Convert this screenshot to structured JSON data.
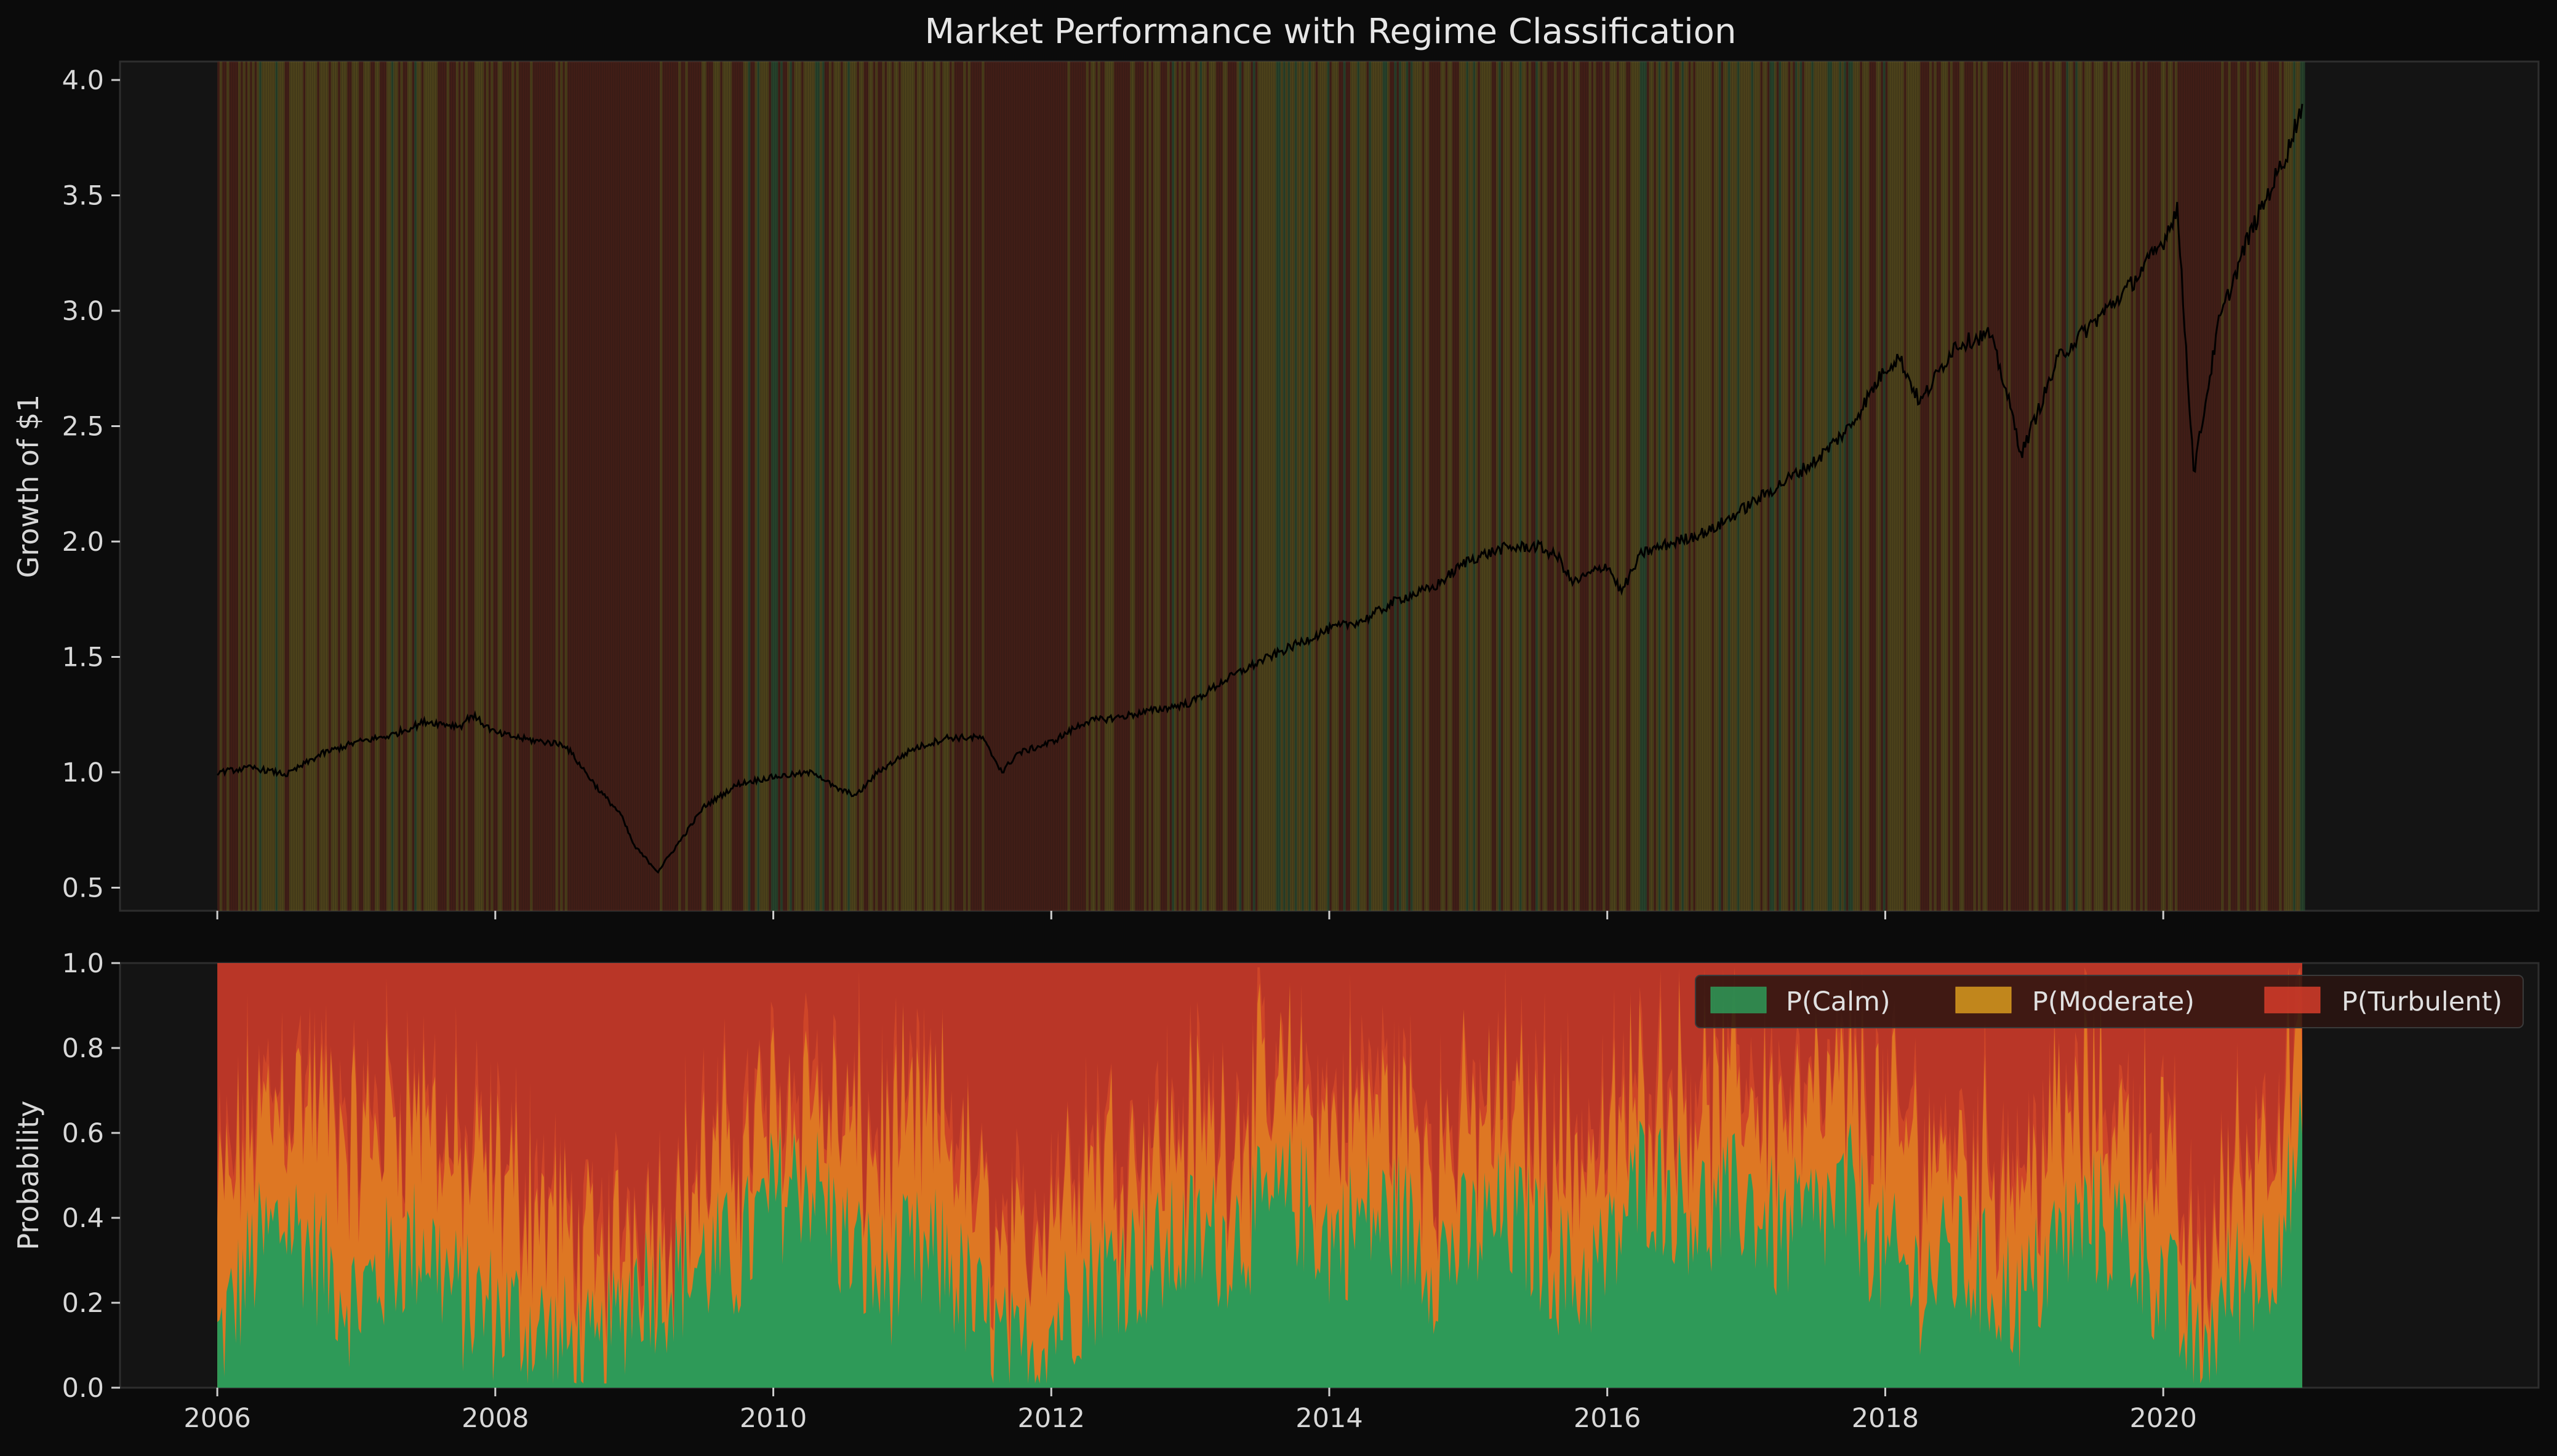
{
  "chart_data": [
    {
      "id": "growth-panel",
      "type": "line",
      "title": "Market Performance with Regime Classification",
      "ylabel": "Growth of $1",
      "xlabel": "",
      "xlim": [
        2005.3,
        2022.7
      ],
      "ylim": [
        0.4,
        4.08
      ],
      "yticks": [
        0.5,
        1.0,
        1.5,
        2.0,
        2.5,
        3.0,
        3.5,
        4.0
      ],
      "ytick_labels": [
        "0.5",
        "1.0",
        "1.5",
        "2.0",
        "2.5",
        "3.0",
        "3.5",
        "4.0"
      ],
      "grid": false,
      "line_color": "#000000",
      "background_regime_colors": {
        "calm": "#2f5a36",
        "moderate": "#6a5a1e",
        "turbulent": "#5a2218"
      },
      "series": [
        {
          "x": [
            2006.0,
            2006.25,
            2006.5,
            2006.75,
            2007.0,
            2007.25,
            2007.5,
            2007.75,
            2007.83,
            2008.0,
            2008.25,
            2008.5,
            2008.75,
            2008.9,
            2009.0,
            2009.17,
            2009.35,
            2009.5,
            2009.75,
            2010.0,
            2010.3,
            2010.45,
            2010.6,
            2010.75,
            2011.0,
            2011.25,
            2011.5,
            2011.65,
            2011.75,
            2012.0,
            2012.25,
            2012.5,
            2012.75,
            2013.0,
            2013.25,
            2013.5,
            2013.75,
            2014.0,
            2014.25,
            2014.5,
            2014.75,
            2015.0,
            2015.25,
            2015.5,
            2015.65,
            2015.75,
            2016.0,
            2016.1,
            2016.25,
            2016.5,
            2016.75,
            2017.0,
            2017.25,
            2017.5,
            2017.75,
            2018.0,
            2018.1,
            2018.25,
            2018.5,
            2018.75,
            2018.85,
            2018.98,
            2019.25,
            2019.5,
            2019.75,
            2020.0,
            2020.1,
            2020.22,
            2020.4,
            2020.6,
            2020.75,
            2020.9,
            2021.0
          ],
          "y": [
            1.0,
            1.02,
            0.99,
            1.08,
            1.13,
            1.16,
            1.22,
            1.2,
            1.25,
            1.17,
            1.14,
            1.12,
            0.92,
            0.82,
            0.68,
            0.57,
            0.72,
            0.85,
            0.95,
            0.98,
            1.0,
            0.93,
            0.9,
            1.0,
            1.1,
            1.15,
            1.15,
            1.0,
            1.08,
            1.13,
            1.22,
            1.24,
            1.27,
            1.3,
            1.4,
            1.48,
            1.55,
            1.62,
            1.66,
            1.75,
            1.8,
            1.92,
            1.97,
            1.98,
            1.93,
            1.82,
            1.9,
            1.78,
            1.95,
            2.0,
            2.05,
            2.15,
            2.25,
            2.35,
            2.5,
            2.75,
            2.8,
            2.6,
            2.85,
            2.9,
            2.7,
            2.38,
            2.8,
            2.95,
            3.1,
            3.3,
            3.45,
            2.3,
            2.95,
            3.3,
            3.5,
            3.7,
            3.9
          ]
        }
      ]
    },
    {
      "id": "probability-panel",
      "type": "area",
      "stacked": true,
      "ylabel": "Probability",
      "xlabel": "",
      "xlim": [
        2005.3,
        2022.7
      ],
      "ylim": [
        0.0,
        1.0
      ],
      "yticks": [
        0.0,
        0.2,
        0.4,
        0.6,
        0.8,
        1.0
      ],
      "ytick_labels": [
        "0.0",
        "0.2",
        "0.4",
        "0.6",
        "0.8",
        "1.0"
      ],
      "xticks": [
        2006,
        2008,
        2010,
        2012,
        2014,
        2016,
        2018,
        2020
      ],
      "xtick_labels": [
        "2006",
        "2008",
        "2010",
        "2012",
        "2014",
        "2016",
        "2018",
        "2020"
      ],
      "grid": false,
      "legend_position": "top-right",
      "x": [
        2006.0,
        2006.25,
        2006.5,
        2006.75,
        2007.0,
        2007.25,
        2007.5,
        2007.75,
        2008.0,
        2008.25,
        2008.5,
        2008.75,
        2009.0,
        2009.25,
        2009.5,
        2009.75,
        2010.0,
        2010.25,
        2010.5,
        2010.75,
        2011.0,
        2011.25,
        2011.5,
        2011.75,
        2012.0,
        2012.25,
        2012.5,
        2012.75,
        2013.0,
        2013.25,
        2013.5,
        2013.75,
        2014.0,
        2014.25,
        2014.5,
        2014.75,
        2015.0,
        2015.25,
        2015.5,
        2015.75,
        2016.0,
        2016.25,
        2016.5,
        2016.75,
        2017.0,
        2017.25,
        2017.5,
        2017.75,
        2018.0,
        2018.25,
        2018.5,
        2018.75,
        2019.0,
        2019.25,
        2019.5,
        2019.75,
        2020.0,
        2020.25,
        2020.5,
        2020.75,
        2021.0
      ],
      "series": [
        {
          "name": "P(Calm)",
          "color": "#2e9a58",
          "values": [
            0.1,
            0.3,
            0.4,
            0.3,
            0.2,
            0.3,
            0.35,
            0.2,
            0.18,
            0.15,
            0.1,
            0.05,
            0.25,
            0.25,
            0.3,
            0.3,
            0.45,
            0.5,
            0.35,
            0.25,
            0.3,
            0.3,
            0.15,
            0.05,
            0.15,
            0.25,
            0.3,
            0.3,
            0.35,
            0.35,
            0.4,
            0.45,
            0.35,
            0.4,
            0.4,
            0.3,
            0.35,
            0.4,
            0.35,
            0.25,
            0.3,
            0.5,
            0.45,
            0.4,
            0.45,
            0.35,
            0.4,
            0.45,
            0.3,
            0.25,
            0.3,
            0.25,
            0.2,
            0.35,
            0.4,
            0.35,
            0.25,
            0.05,
            0.25,
            0.3,
            0.55
          ]
        },
        {
          "name": "P(Moderate)",
          "color": "#d89a1e",
          "values": [
            0.25,
            0.25,
            0.25,
            0.3,
            0.3,
            0.3,
            0.25,
            0.25,
            0.25,
            0.25,
            0.2,
            0.15,
            0.1,
            0.1,
            0.15,
            0.2,
            0.15,
            0.15,
            0.2,
            0.25,
            0.25,
            0.25,
            0.2,
            0.15,
            0.25,
            0.25,
            0.2,
            0.2,
            0.2,
            0.2,
            0.2,
            0.2,
            0.2,
            0.2,
            0.2,
            0.2,
            0.2,
            0.2,
            0.2,
            0.25,
            0.2,
            0.15,
            0.2,
            0.2,
            0.2,
            0.25,
            0.2,
            0.2,
            0.25,
            0.25,
            0.2,
            0.2,
            0.25,
            0.2,
            0.2,
            0.2,
            0.25,
            0.1,
            0.2,
            0.25,
            0.2
          ]
        },
        {
          "name": "P(Turbulent)",
          "color": "#d63c2a",
          "values": [
            0.65,
            0.45,
            0.35,
            0.4,
            0.5,
            0.4,
            0.4,
            0.55,
            0.57,
            0.6,
            0.7,
            0.8,
            0.65,
            0.65,
            0.55,
            0.5,
            0.4,
            0.35,
            0.45,
            0.5,
            0.45,
            0.45,
            0.65,
            0.8,
            0.6,
            0.5,
            0.5,
            0.5,
            0.45,
            0.45,
            0.4,
            0.35,
            0.45,
            0.4,
            0.4,
            0.5,
            0.45,
            0.4,
            0.45,
            0.5,
            0.5,
            0.35,
            0.35,
            0.4,
            0.35,
            0.4,
            0.4,
            0.35,
            0.45,
            0.5,
            0.5,
            0.55,
            0.55,
            0.45,
            0.4,
            0.45,
            0.5,
            0.85,
            0.55,
            0.45,
            0.25
          ]
        }
      ]
    }
  ]
}
